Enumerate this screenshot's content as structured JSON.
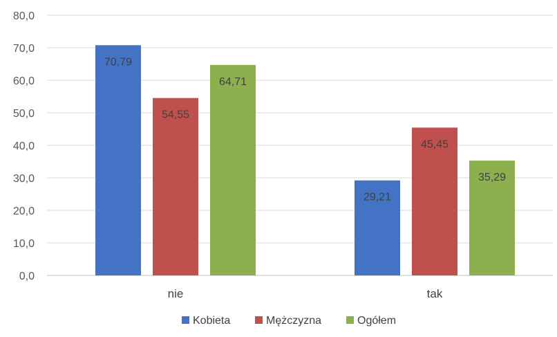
{
  "chart_data": {
    "type": "bar",
    "title": "",
    "xlabel": "",
    "ylabel": "",
    "categories": [
      "nie",
      "tak"
    ],
    "series": [
      {
        "name": "Kobieta",
        "color": "#4472c4",
        "values": [
          70.79,
          29.21
        ],
        "labels": [
          "70,79",
          "29,21"
        ]
      },
      {
        "name": "Mężczyzna",
        "color": "#c0504d",
        "values": [
          54.55,
          45.45
        ],
        "labels": [
          "54,55",
          "45,45"
        ]
      },
      {
        "name": "Ogółem",
        "color": "#8db04f",
        "values": [
          64.71,
          35.29
        ],
        "labels": [
          "64,71",
          "35,29"
        ]
      }
    ],
    "ylim": [
      0,
      80
    ],
    "yticks": [
      0,
      10,
      20,
      30,
      40,
      50,
      60,
      70,
      80
    ],
    "ytick_labels": [
      "0,0",
      "10,0",
      "20,0",
      "30,0",
      "40,0",
      "50,0",
      "60,0",
      "70,0",
      "80,0"
    ],
    "grid": true,
    "legend_position": "bottom"
  }
}
